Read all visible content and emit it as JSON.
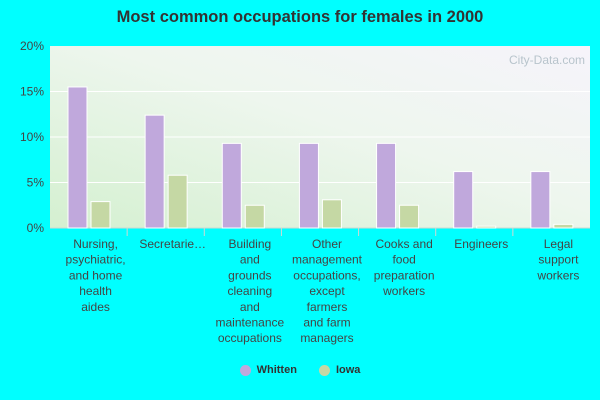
{
  "chart_data": {
    "type": "bar",
    "title": "Most common occupations for females in 2000",
    "categories": [
      "Nursing, psychiatric, and home health aides",
      "Secretaries...",
      "Building and grounds cleaning and maintenance occupations",
      "Other management occupations, except farmers and farm managers",
      "Cooks and food preparation workers",
      "Engineers",
      "Legal support workers"
    ],
    "category_lines": [
      [
        "Nursing,",
        "psychiatric,",
        "and home",
        "health",
        "aides"
      ],
      [
        "Secretarie…"
      ],
      [
        "Building",
        "and",
        "grounds",
        "cleaning",
        "and",
        "maintenance",
        "occupations"
      ],
      [
        "Other",
        "management",
        "occupations,",
        "except",
        "farmers",
        "and farm",
        "managers"
      ],
      [
        "Cooks and",
        "food",
        "preparation",
        "workers"
      ],
      [
        "Engineers"
      ],
      [
        "Legal",
        "support",
        "workers"
      ]
    ],
    "series": [
      {
        "name": "Whitten",
        "color": "#c0a8dc",
        "values": [
          15.5,
          12.4,
          9.3,
          9.3,
          9.3,
          6.2,
          6.2
        ]
      },
      {
        "name": "Iowa",
        "color": "#c5d8a4",
        "values": [
          2.9,
          5.8,
          2.5,
          3.1,
          2.5,
          0.2,
          0.4
        ]
      }
    ],
    "yticks": [
      "0%",
      "5%",
      "10%",
      "15%",
      "20%"
    ],
    "ylim": [
      0,
      20
    ],
    "grid": true,
    "legend_position": "bottom",
    "xlabel": "",
    "ylabel": ""
  }
}
